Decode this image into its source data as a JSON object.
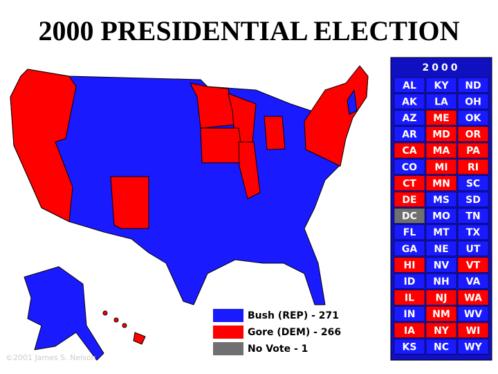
{
  "title": "2000 PRESIDENTIAL ELECTION",
  "panel": {
    "header": "2000",
    "columns": [
      [
        {
          "label": "AL",
          "color": "#1a1aff"
        },
        {
          "label": "AK",
          "color": "#1a1aff"
        },
        {
          "label": "AZ",
          "color": "#1a1aff"
        },
        {
          "label": "AR",
          "color": "#1a1aff"
        },
        {
          "label": "CA",
          "color": "#ff0000"
        },
        {
          "label": "CO",
          "color": "#1a1aff"
        },
        {
          "label": "CT",
          "color": "#ff0000"
        },
        {
          "label": "DE",
          "color": "#ff0000"
        },
        {
          "label": "DC",
          "color": "#707070"
        },
        {
          "label": "FL",
          "color": "#1a1aff"
        },
        {
          "label": "GA",
          "color": "#1a1aff"
        },
        {
          "label": "HI",
          "color": "#ff0000"
        },
        {
          "label": "ID",
          "color": "#1a1aff"
        },
        {
          "label": "IL",
          "color": "#ff0000"
        },
        {
          "label": "IN",
          "color": "#1a1aff"
        },
        {
          "label": "IA",
          "color": "#ff0000"
        },
        {
          "label": "KS",
          "color": "#1a1aff"
        }
      ],
      [
        {
          "label": "KY",
          "color": "#1a1aff"
        },
        {
          "label": "LA",
          "color": "#1a1aff"
        },
        {
          "label": "ME",
          "color": "#ff0000"
        },
        {
          "label": "MD",
          "color": "#ff0000"
        },
        {
          "label": "MA",
          "color": "#ff0000"
        },
        {
          "label": "MI",
          "color": "#ff0000"
        },
        {
          "label": "MN",
          "color": "#ff0000"
        },
        {
          "label": "MS",
          "color": "#1a1aff"
        },
        {
          "label": "MO",
          "color": "#1a1aff"
        },
        {
          "label": "MT",
          "color": "#1a1aff"
        },
        {
          "label": "NE",
          "color": "#1a1aff"
        },
        {
          "label": "NV",
          "color": "#1a1aff"
        },
        {
          "label": "NH",
          "color": "#1a1aff"
        },
        {
          "label": "NJ",
          "color": "#ff0000"
        },
        {
          "label": "NM",
          "color": "#ff0000"
        },
        {
          "label": "NY",
          "color": "#ff0000"
        },
        {
          "label": "NC",
          "color": "#1a1aff"
        }
      ],
      [
        {
          "label": "ND",
          "color": "#1a1aff"
        },
        {
          "label": "OH",
          "color": "#1a1aff"
        },
        {
          "label": "OK",
          "color": "#1a1aff"
        },
        {
          "label": "OR",
          "color": "#ff0000"
        },
        {
          "label": "PA",
          "color": "#ff0000"
        },
        {
          "label": "RI",
          "color": "#ff0000"
        },
        {
          "label": "SC",
          "color": "#1a1aff"
        },
        {
          "label": "SD",
          "color": "#1a1aff"
        },
        {
          "label": "TN",
          "color": "#1a1aff"
        },
        {
          "label": "TX",
          "color": "#1a1aff"
        },
        {
          "label": "UT",
          "color": "#1a1aff"
        },
        {
          "label": "VT",
          "color": "#ff0000"
        },
        {
          "label": "VA",
          "color": "#1a1aff"
        },
        {
          "label": "WA",
          "color": "#ff0000"
        },
        {
          "label": "WV",
          "color": "#1a1aff"
        },
        {
          "label": "WI",
          "color": "#ff0000"
        },
        {
          "label": "WY",
          "color": "#1a1aff"
        }
      ]
    ]
  },
  "legend": [
    {
      "label": "Bush (REP) - 271",
      "color": "#1a1aff"
    },
    {
      "label": "Gore (DEM) - 266",
      "color": "#ff0000"
    },
    {
      "label": "No Vote - 1",
      "color": "#707070"
    }
  ],
  "copyright": "©2001 James S. Nelson"
}
